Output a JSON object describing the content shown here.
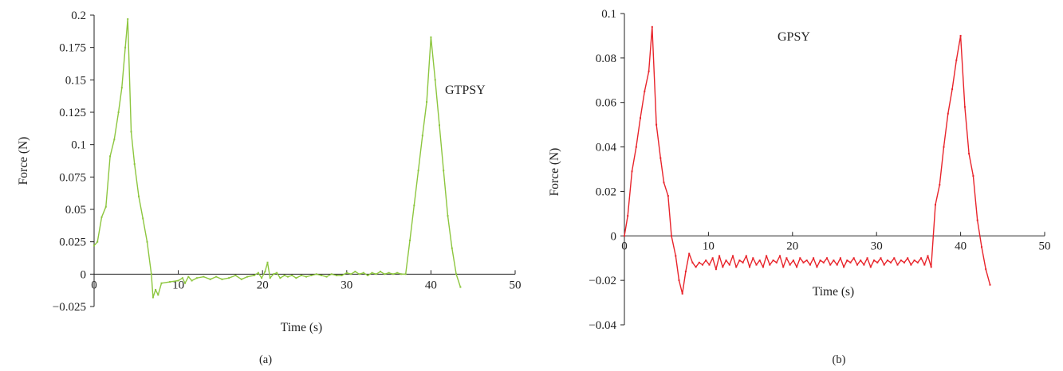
{
  "chart_data": [
    {
      "type": "line",
      "panel_label": "(a)",
      "xlabel": "Time (s)",
      "ylabel": "Force (N)",
      "xlim": [
        0,
        50
      ],
      "ylim": [
        -0.025,
        0.2
      ],
      "xticks": [
        0,
        10,
        20,
        30,
        40,
        50
      ],
      "xtick_labels": [
        "0",
        "10",
        "20",
        "30",
        "40",
        "50"
      ],
      "yticks": [
        0.2,
        0.175,
        0.15,
        0.125,
        0.1,
        0.075,
        0.05,
        0.025,
        0,
        -0.025
      ],
      "ytick_labels": [
        "0.2",
        "0.175",
        "0.15",
        "0.125",
        "0.1",
        "0.075",
        "0.05",
        "0.025",
        "0",
        "−0.025"
      ],
      "annotation": "GTPSY",
      "color": "#8dc63f",
      "grid": false,
      "series": [
        {
          "x": [
            0,
            0.4,
            0.9,
            1.4,
            1.9,
            2.4,
            2.9,
            3.3,
            3.7,
            4.0,
            4.4,
            4.8,
            5.3,
            5.8,
            6.3,
            6.8,
            7.0,
            7.3,
            7.6,
            8.0,
            9.0,
            10.0,
            10.5,
            10.8,
            11.2,
            11.6,
            12.2,
            13.0,
            13.8,
            14.5,
            15.2,
            16.0,
            16.8,
            17.5,
            18.2,
            19.0,
            19.5,
            19.9,
            20.3,
            20.6,
            20.9,
            21.3,
            21.7,
            22.1,
            22.6,
            23.0,
            23.5,
            24.0,
            24.6,
            25.2,
            25.8,
            26.4,
            27.0,
            27.6,
            28.2,
            28.8,
            29.4,
            30.0,
            30.5,
            31.0,
            31.5,
            32.0,
            32.5,
            33.0,
            33.5,
            34.0,
            34.5,
            35.0,
            35.5,
            36.0,
            36.5,
            37.0,
            37.5,
            38.0,
            38.5,
            39.0,
            39.5,
            40.0,
            40.5,
            41.0,
            41.5,
            42.0,
            42.5,
            43.0,
            43.5
          ],
          "y": [
            0.022,
            0.025,
            0.044,
            0.052,
            0.091,
            0.104,
            0.125,
            0.144,
            0.175,
            0.197,
            0.11,
            0.085,
            0.06,
            0.043,
            0.025,
            0.0,
            -0.018,
            -0.012,
            -0.016,
            -0.007,
            -0.006,
            -0.005,
            -0.003,
            -0.007,
            -0.002,
            -0.005,
            -0.003,
            -0.002,
            -0.004,
            -0.002,
            -0.004,
            -0.003,
            -0.001,
            -0.004,
            -0.002,
            -0.001,
            0.001,
            -0.003,
            0.002,
            0.009,
            -0.003,
            0.0,
            0.001,
            -0.003,
            -0.001,
            -0.002,
            -0.001,
            -0.003,
            -0.001,
            -0.002,
            -0.001,
            0.0,
            -0.001,
            -0.002,
            0.0,
            -0.001,
            -0.001,
            0.001,
            0.0,
            0.002,
            0.0,
            0.001,
            -0.001,
            0.001,
            0.0,
            0.002,
            0.0,
            0.001,
            0.0,
            0.001,
            0.0,
            0.0,
            0.026,
            0.053,
            0.08,
            0.107,
            0.133,
            0.183,
            0.15,
            0.115,
            0.08,
            0.045,
            0.02,
            0.0,
            -0.01
          ]
        }
      ]
    },
    {
      "type": "line",
      "panel_label": "(b)",
      "xlabel": "Time (s)",
      "ylabel": "Force (N)",
      "xlim": [
        0,
        50
      ],
      "ylim": [
        -0.04,
        0.1
      ],
      "xticks": [
        0,
        10,
        20,
        30,
        40,
        50
      ],
      "xtick_labels": [
        "0",
        "10",
        "20",
        "30",
        "40",
        "50"
      ],
      "yticks": [
        0.1,
        0.08,
        0.06,
        0.04,
        0.02,
        0,
        -0.02,
        -0.04
      ],
      "ytick_labels": [
        "0.1",
        "0.08",
        "0.06",
        "0.04",
        "0.02",
        "0",
        "−0.02",
        "−0.04"
      ],
      "annotation": "GPSY",
      "color": "#e8242b",
      "grid": false,
      "series": [
        {
          "x": [
            0,
            0.4,
            0.9,
            1.4,
            1.9,
            2.4,
            2.9,
            3.3,
            3.8,
            4.3,
            4.7,
            5.2,
            5.6,
            6.1,
            6.5,
            6.9,
            7.3,
            7.7,
            8.1,
            8.5,
            8.9,
            9.3,
            9.7,
            10.1,
            10.5,
            10.9,
            11.3,
            11.7,
            12.1,
            12.5,
            12.9,
            13.3,
            13.7,
            14.1,
            14.5,
            14.9,
            15.3,
            15.7,
            16.1,
            16.5,
            16.9,
            17.3,
            17.7,
            18.1,
            18.5,
            18.9,
            19.3,
            19.7,
            20.1,
            20.5,
            20.9,
            21.3,
            21.7,
            22.1,
            22.5,
            22.9,
            23.3,
            23.7,
            24.1,
            24.5,
            24.9,
            25.3,
            25.7,
            26.1,
            26.5,
            26.9,
            27.3,
            27.7,
            28.1,
            28.5,
            28.9,
            29.3,
            29.7,
            30.1,
            30.5,
            30.9,
            31.3,
            31.7,
            32.1,
            32.5,
            32.9,
            33.3,
            33.7,
            34.1,
            34.5,
            34.9,
            35.3,
            35.7,
            36.1,
            36.5,
            37.0,
            37.5,
            38.0,
            38.5,
            39.0,
            39.5,
            40.0,
            40.5,
            41.0,
            41.5,
            42.0,
            42.5,
            43.0,
            43.5
          ],
          "y": [
            0.0,
            0.009,
            0.029,
            0.04,
            0.053,
            0.065,
            0.074,
            0.094,
            0.05,
            0.035,
            0.024,
            0.018,
            0.0,
            -0.009,
            -0.02,
            -0.026,
            -0.016,
            -0.008,
            -0.012,
            -0.014,
            -0.012,
            -0.013,
            -0.011,
            -0.013,
            -0.01,
            -0.015,
            -0.009,
            -0.014,
            -0.011,
            -0.013,
            -0.009,
            -0.014,
            -0.011,
            -0.012,
            -0.009,
            -0.014,
            -0.01,
            -0.013,
            -0.011,
            -0.014,
            -0.009,
            -0.013,
            -0.011,
            -0.012,
            -0.009,
            -0.014,
            -0.01,
            -0.013,
            -0.011,
            -0.014,
            -0.01,
            -0.012,
            -0.011,
            -0.013,
            -0.01,
            -0.014,
            -0.011,
            -0.012,
            -0.01,
            -0.013,
            -0.011,
            -0.013,
            -0.01,
            -0.014,
            -0.011,
            -0.012,
            -0.01,
            -0.013,
            -0.011,
            -0.013,
            -0.01,
            -0.014,
            -0.011,
            -0.012,
            -0.01,
            -0.013,
            -0.011,
            -0.012,
            -0.01,
            -0.013,
            -0.011,
            -0.012,
            -0.01,
            -0.013,
            -0.011,
            -0.012,
            -0.01,
            -0.013,
            -0.009,
            -0.014,
            0.014,
            0.023,
            0.04,
            0.055,
            0.066,
            0.079,
            0.09,
            0.058,
            0.037,
            0.027,
            0.007,
            -0.005,
            -0.015,
            -0.022
          ]
        }
      ]
    }
  ]
}
